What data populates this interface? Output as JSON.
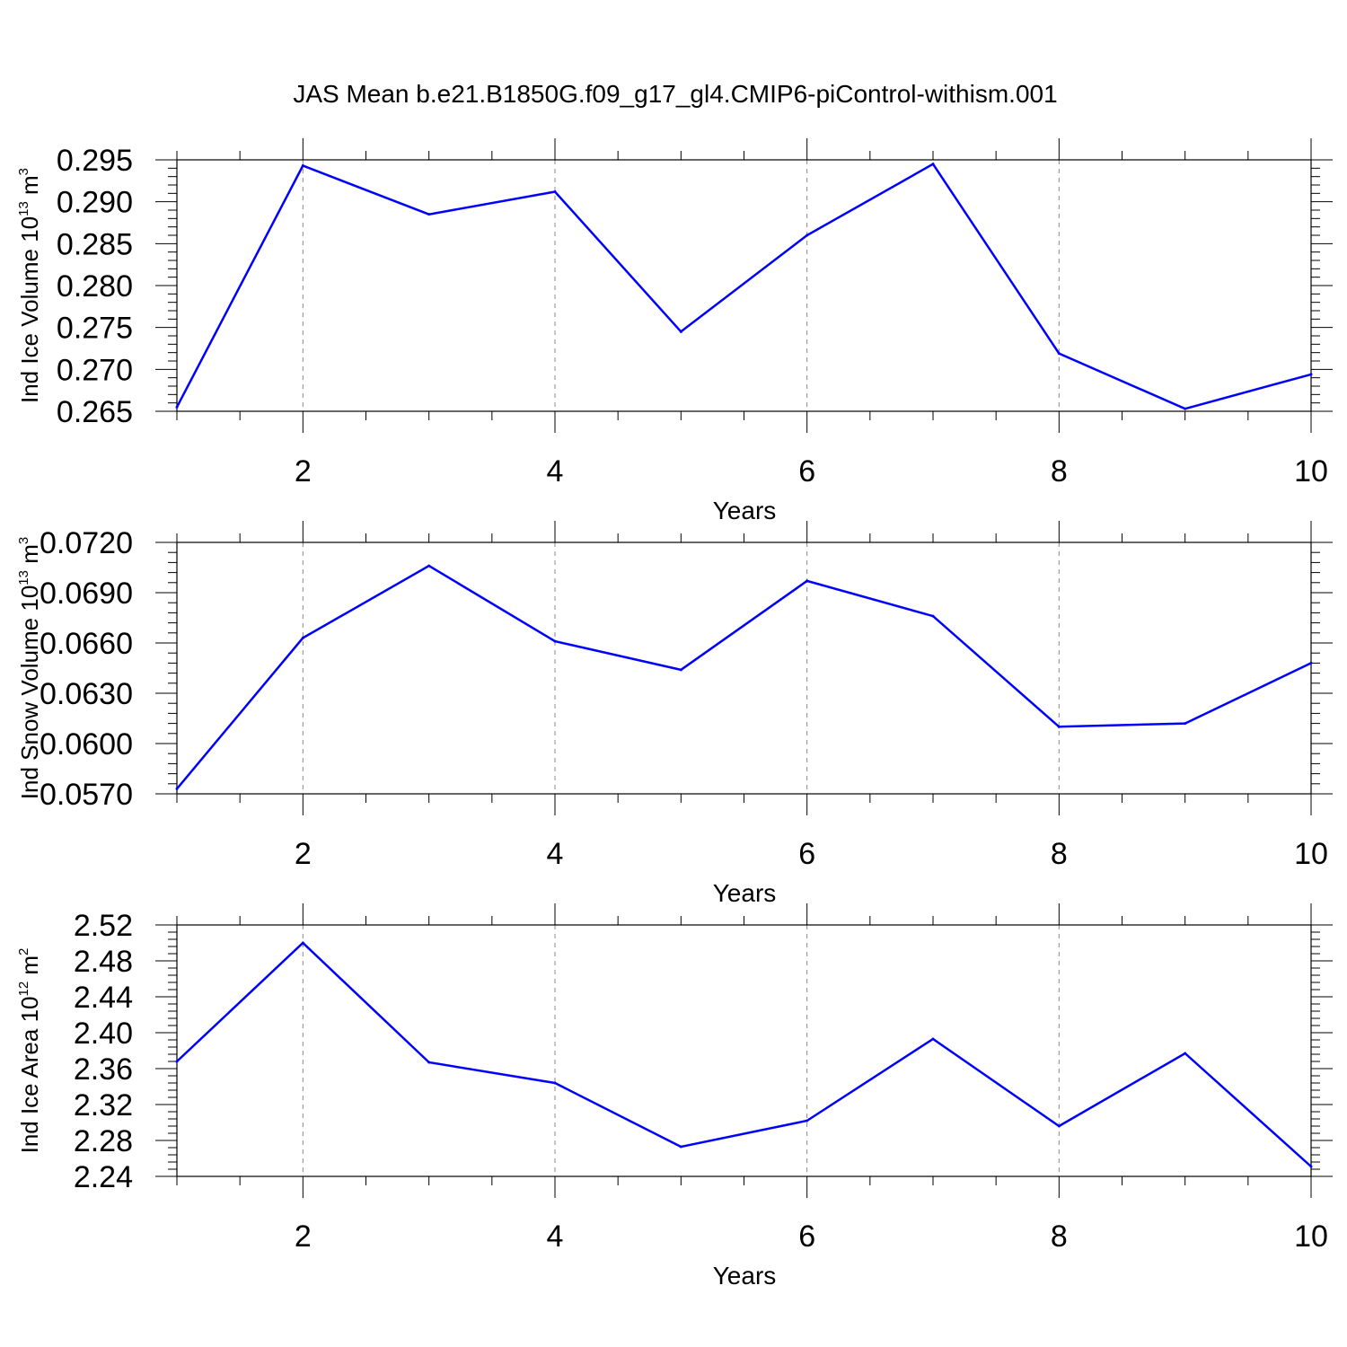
{
  "chart_data": {
    "title": "JAS Mean b.e21.B1850G.f09_g17_gl4.CMIP6-piControl-withism.001",
    "panels": [
      {
        "type": "line",
        "xlabel": "Years",
        "ylabel": {
          "prefix": "Ind Ice Volume 10",
          "exponent": "13",
          "middle": " m",
          "unit_exponent": "3"
        },
        "x": [
          1,
          2,
          3,
          4,
          5,
          6,
          7,
          8,
          9,
          10
        ],
        "y": [
          0.2655,
          0.2943,
          0.2885,
          0.2912,
          0.2745,
          0.286,
          0.2945,
          0.2719,
          0.2653,
          0.2694
        ],
        "ylim": [
          0.265,
          0.295
        ],
        "yticks": [
          0.265,
          0.27,
          0.275,
          0.28,
          0.285,
          0.29,
          0.295
        ],
        "ytick_labels": [
          "0.265",
          "0.270",
          "0.275",
          "0.280",
          "0.285",
          "0.290",
          "0.295"
        ],
        "xlim": [
          1,
          10
        ],
        "xticks": [
          2,
          4,
          6,
          8,
          10
        ],
        "xtick_labels": [
          "2",
          "4",
          "6",
          "8",
          "10"
        ],
        "color": "#0000ff"
      },
      {
        "type": "line",
        "xlabel": "Years",
        "ylabel": {
          "prefix": "Ind Snow Volume 10",
          "exponent": "13",
          "middle": " m",
          "unit_exponent": "3"
        },
        "x": [
          1,
          2,
          3,
          4,
          5,
          6,
          7,
          8,
          9,
          10
        ],
        "y": [
          0.0573,
          0.0663,
          0.0706,
          0.0661,
          0.0644,
          0.0697,
          0.0676,
          0.061,
          0.0612,
          0.0648
        ],
        "ylim": [
          0.057,
          0.072
        ],
        "yticks": [
          0.057,
          0.06,
          0.063,
          0.066,
          0.069,
          0.072
        ],
        "ytick_labels": [
          "0.0570",
          "0.0600",
          "0.0630",
          "0.0660",
          "0.0690",
          "0.0720"
        ],
        "xlim": [
          1,
          10
        ],
        "xticks": [
          2,
          4,
          6,
          8,
          10
        ],
        "xtick_labels": [
          "2",
          "4",
          "6",
          "8",
          "10"
        ],
        "color": "#0000ff"
      },
      {
        "type": "line",
        "xlabel": "Years",
        "ylabel": {
          "prefix": "Ind Ice Area 10",
          "exponent": "12",
          "middle": " m",
          "unit_exponent": "2"
        },
        "x": [
          1,
          2,
          3,
          4,
          5,
          6,
          7,
          8,
          9,
          10
        ],
        "y": [
          2.368,
          2.5,
          2.367,
          2.344,
          2.273,
          2.302,
          2.393,
          2.296,
          2.377,
          2.251
        ],
        "ylim": [
          2.24,
          2.52
        ],
        "yticks": [
          2.24,
          2.28,
          2.32,
          2.36,
          2.4,
          2.44,
          2.48,
          2.52
        ],
        "ytick_labels": [
          "2.24",
          "2.28",
          "2.32",
          "2.36",
          "2.40",
          "2.44",
          "2.48",
          "2.52"
        ],
        "xlim": [
          1,
          10
        ],
        "xticks": [
          2,
          4,
          6,
          8,
          10
        ],
        "xtick_labels": [
          "2",
          "4",
          "6",
          "8",
          "10"
        ],
        "color": "#0000ff"
      }
    ]
  }
}
